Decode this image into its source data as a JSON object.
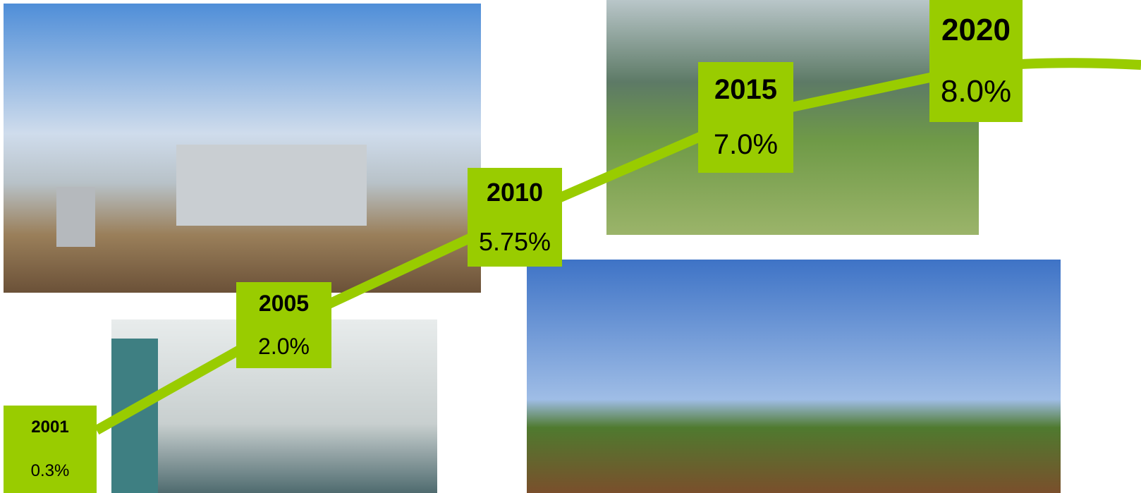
{
  "milestones": [
    {
      "year": "2001",
      "share": "0.3%"
    },
    {
      "year": "2005",
      "share": "2.0%"
    },
    {
      "year": "2010",
      "share": "5.75%"
    },
    {
      "year": "2015",
      "share": "7.0%"
    },
    {
      "year": "2020",
      "share": "8.0%"
    }
  ]
}
